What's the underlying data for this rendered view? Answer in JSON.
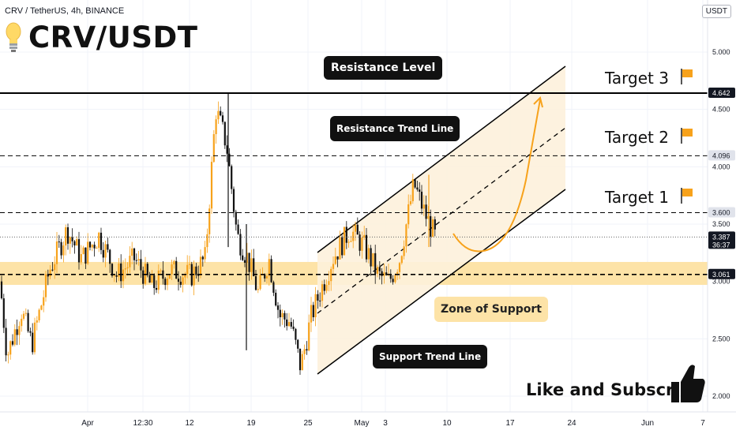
{
  "header": {
    "symbol_line": "CRV / TetherUS, 4h, BINANCE",
    "title": "CRV/USDT",
    "unit": "USDT"
  },
  "colors": {
    "candle": "#f7a21b",
    "zone": "#fde3a7",
    "channel_fill": "#fdf1dc",
    "line": "#000000"
  },
  "annotations": {
    "resistance_level": "Resistance Level",
    "resistance_trend_line": "Resistance Trend Line",
    "support_trend_line": "Support Trend Line",
    "zone_of_support": "Zone of Support",
    "cta": "Like and Subscribe"
  },
  "targets": [
    {
      "label": "Target 3",
      "price": 4.642
    },
    {
      "label": "Target 2",
      "price": 4.096
    },
    {
      "label": "Target 1",
      "price": 3.6
    }
  ],
  "icons": [
    "lightbulb-icon",
    "flag-icon",
    "thumbs-up-icon"
  ],
  "chart_data": {
    "type": "candlestick",
    "x_tick_labels": [
      "Apr",
      "12:30",
      "12",
      "19",
      "25",
      "May",
      "3",
      "10",
      "17",
      "24",
      "Jun",
      "7"
    ],
    "y_tick_labels": [
      "5.000",
      "4.500",
      "4.000",
      "3.500",
      "3.000",
      "2.500",
      "2.000"
    ],
    "ylim": [
      1.95,
      5.4
    ],
    "price_labels": [
      {
        "value": "4.642",
        "price": 4.642,
        "style": "dark"
      },
      {
        "value": "4.096",
        "price": 4.096,
        "style": "light"
      },
      {
        "value": "3.600",
        "price": 3.6,
        "style": "light"
      },
      {
        "value": "3.387",
        "price": 3.387,
        "style": "dark",
        "sub": "36:37"
      },
      {
        "value": "3.061",
        "price": 3.061,
        "style": "dark"
      }
    ],
    "levels": [
      {
        "name": "resistance-level",
        "price": 4.642,
        "style": "solid"
      },
      {
        "name": "target-2-level",
        "price": 4.096,
        "style": "dashed"
      },
      {
        "name": "target-1-level",
        "price": 3.6,
        "style": "dashed"
      },
      {
        "name": "current-price-level",
        "price": 3.387,
        "style": "dotted"
      },
      {
        "name": "support-level",
        "price": 3.061,
        "style": "dashed"
      }
    ],
    "support_zone": [
      2.97,
      3.17
    ],
    "price_path_anchors": [
      [
        0.0,
        3.0
      ],
      [
        0.01,
        2.35
      ],
      [
        0.03,
        2.75
      ],
      [
        0.045,
        2.45
      ],
      [
        0.07,
        3.1
      ],
      [
        0.095,
        3.45
      ],
      [
        0.115,
        3.2
      ],
      [
        0.14,
        3.4
      ],
      [
        0.165,
        3.05
      ],
      [
        0.19,
        3.2
      ],
      [
        0.215,
        2.95
      ],
      [
        0.24,
        3.1
      ],
      [
        0.27,
        3.05
      ],
      [
        0.29,
        3.2
      ],
      [
        0.305,
        4.5
      ],
      [
        0.32,
        4.2
      ],
      [
        0.335,
        3.4
      ],
      [
        0.35,
        3.2
      ],
      [
        0.365,
        2.9
      ],
      [
        0.38,
        3.2
      ],
      [
        0.395,
        2.7
      ],
      [
        0.41,
        2.65
      ],
      [
        0.425,
        2.25
      ],
      [
        0.44,
        2.7
      ],
      [
        0.455,
        2.95
      ],
      [
        0.47,
        3.2
      ],
      [
        0.495,
        3.45
      ],
      [
        0.515,
        3.3
      ],
      [
        0.535,
        3.05
      ],
      [
        0.55,
        3.0
      ],
      [
        0.565,
        3.2
      ],
      [
        0.585,
        3.85
      ],
      [
        0.6,
        3.6
      ],
      [
        0.615,
        3.387
      ]
    ]
  }
}
